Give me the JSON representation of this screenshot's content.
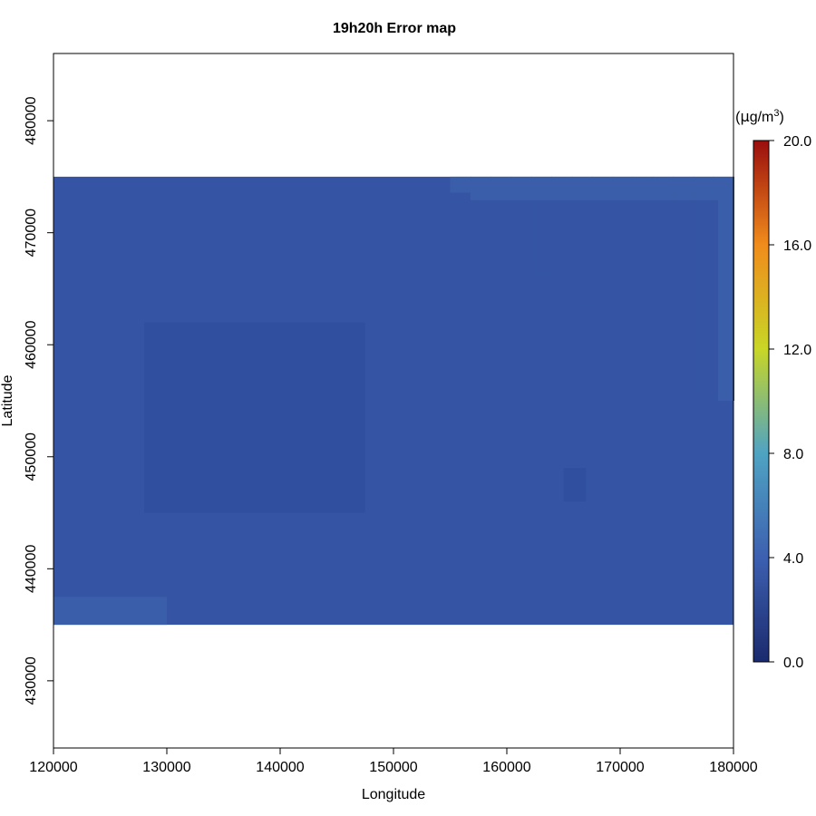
{
  "chart_data": {
    "type": "heatmap",
    "title": "19h20h Error map",
    "xlabel": "Longitude",
    "ylabel": "Latitude",
    "xlim": [
      120000,
      180000
    ],
    "ylim": [
      424000,
      486000
    ],
    "x_ticks": [
      120000,
      130000,
      140000,
      150000,
      160000,
      170000,
      180000
    ],
    "y_ticks": [
      430000,
      440000,
      450000,
      460000,
      470000,
      480000
    ],
    "grid": false,
    "data_extent": {
      "x": [
        120000,
        180000
      ],
      "y": [
        435000,
        475000
      ]
    },
    "base_value": 3.9,
    "regions": [
      {
        "name": "central-dark-patch",
        "x": [
          128000,
          147500
        ],
        "y": [
          445000,
          462000
        ],
        "value": 3.6
      },
      {
        "name": "small-dark-patch",
        "x": [
          165000,
          167000
        ],
        "y": [
          446000,
          449000
        ],
        "value": 3.6
      },
      {
        "name": "northeast-light-band",
        "x": [
          155000,
          180000
        ],
        "y": [
          455000,
          475000
        ],
        "value": 4.2
      },
      {
        "name": "southwest-light-band",
        "x": [
          120000,
          130000
        ],
        "y": [
          435000,
          437500
        ],
        "value": 4.2
      }
    ],
    "colorbar": {
      "unit": "(µg/m³)",
      "range": [
        0,
        20
      ],
      "ticks": [
        "0.0",
        "4.0",
        "8.0",
        "12.0",
        "16.0",
        "20.0"
      ],
      "colors": [
        "#1b2a6e",
        "#3d60b0",
        "#4fa3c3",
        "#c8d626",
        "#f08c1c",
        "#9a0d0d"
      ]
    }
  },
  "colors": {
    "cell_base": "#3554a4",
    "cell_dark": "#30509f",
    "cell_light": "#3a5ea9",
    "frame": "#000000"
  }
}
